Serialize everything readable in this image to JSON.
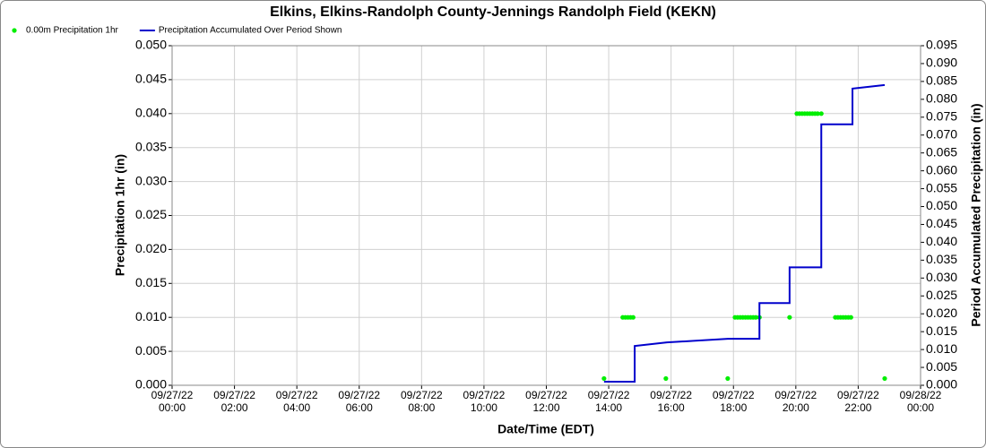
{
  "chart_data": {
    "type": "combo",
    "title": "Elkins, Elkins-Randolph County-Jennings Randolph Field (KEKN)",
    "xlabel": "Date/Time (EDT)",
    "ylabel": "Precipitation 1hr (in)",
    "y2label": "Period Accumulated Precipitation (in)",
    "xlim": [
      "2022-09-27 00:00",
      "2022-09-28 00:00"
    ],
    "xticks": [
      {
        "value": "2022-09-27 00:00",
        "label": "09/27/22\n00:00"
      },
      {
        "value": "2022-09-27 02:00",
        "label": "09/27/22\n02:00"
      },
      {
        "value": "2022-09-27 04:00",
        "label": "09/27/22\n04:00"
      },
      {
        "value": "2022-09-27 06:00",
        "label": "09/27/22\n06:00"
      },
      {
        "value": "2022-09-27 08:00",
        "label": "09/27/22\n08:00"
      },
      {
        "value": "2022-09-27 10:00",
        "label": "09/27/22\n10:00"
      },
      {
        "value": "2022-09-27 12:00",
        "label": "09/27/22\n12:00"
      },
      {
        "value": "2022-09-27 14:00",
        "label": "09/27/22\n14:00"
      },
      {
        "value": "2022-09-27 16:00",
        "label": "09/27/22\n16:00"
      },
      {
        "value": "2022-09-27 18:00",
        "label": "09/27/22\n18:00"
      },
      {
        "value": "2022-09-27 20:00",
        "label": "09/27/22\n20:00"
      },
      {
        "value": "2022-09-27 22:00",
        "label": "09/27/22\n22:00"
      },
      {
        "value": "2022-09-28 00:00",
        "label": "09/28/22\n00:00"
      }
    ],
    "ylim": [
      0,
      0.05
    ],
    "yticks": [
      {
        "value": 0,
        "label": "0.000"
      },
      {
        "value": 0.005,
        "label": "0.005"
      },
      {
        "value": 0.01,
        "label": "0.010"
      },
      {
        "value": 0.015,
        "label": "0.015"
      },
      {
        "value": 0.02,
        "label": "0.020"
      },
      {
        "value": 0.025,
        "label": "0.025"
      },
      {
        "value": 0.03,
        "label": "0.030"
      },
      {
        "value": 0.035,
        "label": "0.035"
      },
      {
        "value": 0.04,
        "label": "0.040"
      },
      {
        "value": 0.045,
        "label": "0.045"
      },
      {
        "value": 0.05,
        "label": "0.050"
      }
    ],
    "y2lim": [
      0,
      0.095
    ],
    "y2ticks": [
      {
        "value": 0,
        "label": "0.000"
      },
      {
        "value": 0.005,
        "label": "0.005"
      },
      {
        "value": 0.01,
        "label": "0.010"
      },
      {
        "value": 0.015,
        "label": "0.015"
      },
      {
        "value": 0.02,
        "label": "0.020"
      },
      {
        "value": 0.025,
        "label": "0.025"
      },
      {
        "value": 0.03,
        "label": "0.030"
      },
      {
        "value": 0.035,
        "label": "0.035"
      },
      {
        "value": 0.04,
        "label": "0.040"
      },
      {
        "value": 0.045,
        "label": "0.045"
      },
      {
        "value": 0.05,
        "label": "0.050"
      },
      {
        "value": 0.055,
        "label": "0.055"
      },
      {
        "value": 0.06,
        "label": "0.060"
      },
      {
        "value": 0.065,
        "label": "0.065"
      },
      {
        "value": 0.07,
        "label": "0.070"
      },
      {
        "value": 0.075,
        "label": "0.075"
      },
      {
        "value": 0.08,
        "label": "0.080"
      },
      {
        "value": 0.085,
        "label": "0.085"
      },
      {
        "value": 0.09,
        "label": "0.090"
      },
      {
        "value": 0.095,
        "label": "0.095"
      }
    ],
    "grid": true,
    "legend": "top-left",
    "series": [
      {
        "name": "0.00m Precipitation 1hr",
        "color": "#00ee00",
        "type": "scatter",
        "x": [
          "2022-09-27 13:51",
          "2022-09-27 14:27",
          "2022-09-27 14:32",
          "2022-09-27 14:37",
          "2022-09-27 14:42",
          "2022-09-27 14:47",
          "2022-09-27 15:50",
          "2022-09-27 17:49",
          "2022-09-27 18:03",
          "2022-09-27 18:08",
          "2022-09-27 18:13",
          "2022-09-27 18:18",
          "2022-09-27 18:23",
          "2022-09-27 18:28",
          "2022-09-27 18:33",
          "2022-09-27 18:38",
          "2022-09-27 18:43",
          "2022-09-27 18:50",
          "2022-09-27 19:48",
          "2022-09-27 20:02",
          "2022-09-27 20:07",
          "2022-09-27 20:12",
          "2022-09-27 20:17",
          "2022-09-27 20:22",
          "2022-09-27 20:27",
          "2022-09-27 20:32",
          "2022-09-27 20:37",
          "2022-09-27 20:42",
          "2022-09-27 20:49",
          "2022-09-27 21:16",
          "2022-09-27 21:21",
          "2022-09-27 21:26",
          "2022-09-27 21:31",
          "2022-09-27 21:36",
          "2022-09-27 21:41",
          "2022-09-27 21:46",
          "2022-09-27 22:51"
        ],
        "values": [
          0.001,
          0.01,
          0.01,
          0.01,
          0.01,
          0.01,
          0.001,
          0.001,
          0.01,
          0.01,
          0.01,
          0.01,
          0.01,
          0.01,
          0.01,
          0.01,
          0.01,
          0.01,
          0.01,
          0.04,
          0.04,
          0.04,
          0.04,
          0.04,
          0.04,
          0.04,
          0.04,
          0.04,
          0.04,
          0.01,
          0.01,
          0.01,
          0.01,
          0.01,
          0.01,
          0.01,
          0.001
        ]
      },
      {
        "name": "Precipitation Accumulated Over Period Shown",
        "color": "#0000cc",
        "type": "line",
        "axis": "y2",
        "x": [
          "2022-09-27 13:51",
          "2022-09-27 14:50",
          "2022-09-27 14:50",
          "2022-09-27 15:52",
          "2022-09-27 17:49",
          "2022-09-27 18:50",
          "2022-09-27 18:50",
          "2022-09-27 19:48",
          "2022-09-27 19:48",
          "2022-09-27 20:49",
          "2022-09-27 20:49",
          "2022-09-27 21:49",
          "2022-09-27 21:49",
          "2022-09-27 22:51"
        ],
        "values": [
          0.001,
          0.001,
          0.011,
          0.012,
          0.013,
          0.013,
          0.023,
          0.023,
          0.033,
          0.033,
          0.073,
          0.073,
          0.083,
          0.084
        ]
      }
    ]
  }
}
